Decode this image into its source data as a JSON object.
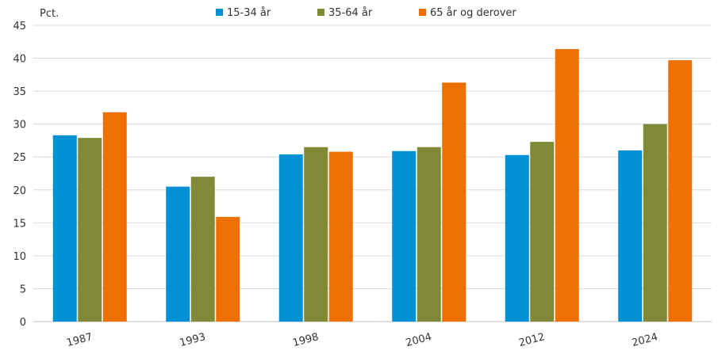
{
  "chart_data": {
    "type": "bar",
    "ylabel": "Pct.",
    "ylim": [
      0,
      45
    ],
    "yticks": [
      "0",
      "5",
      "10",
      "15",
      "20",
      "25",
      "30",
      "35",
      "40",
      "45"
    ],
    "grid": true,
    "legend_position": "top-center",
    "categories": [
      "1987",
      "1993",
      "1998",
      "2004",
      "2012",
      "2024"
    ],
    "series": [
      {
        "name": "15-34 år",
        "color": "#0091d5",
        "values": [
          28.3,
          20.5,
          25.4,
          25.9,
          25.3,
          26.0
        ]
      },
      {
        "name": "35-64 år",
        "color": "#7f8936",
        "values": [
          27.9,
          22.0,
          26.5,
          26.5,
          27.3,
          30.0
        ]
      },
      {
        "name": "65 år og derover",
        "color": "#ee7000",
        "values": [
          31.8,
          15.9,
          25.8,
          36.3,
          41.4,
          39.7
        ]
      }
    ]
  }
}
